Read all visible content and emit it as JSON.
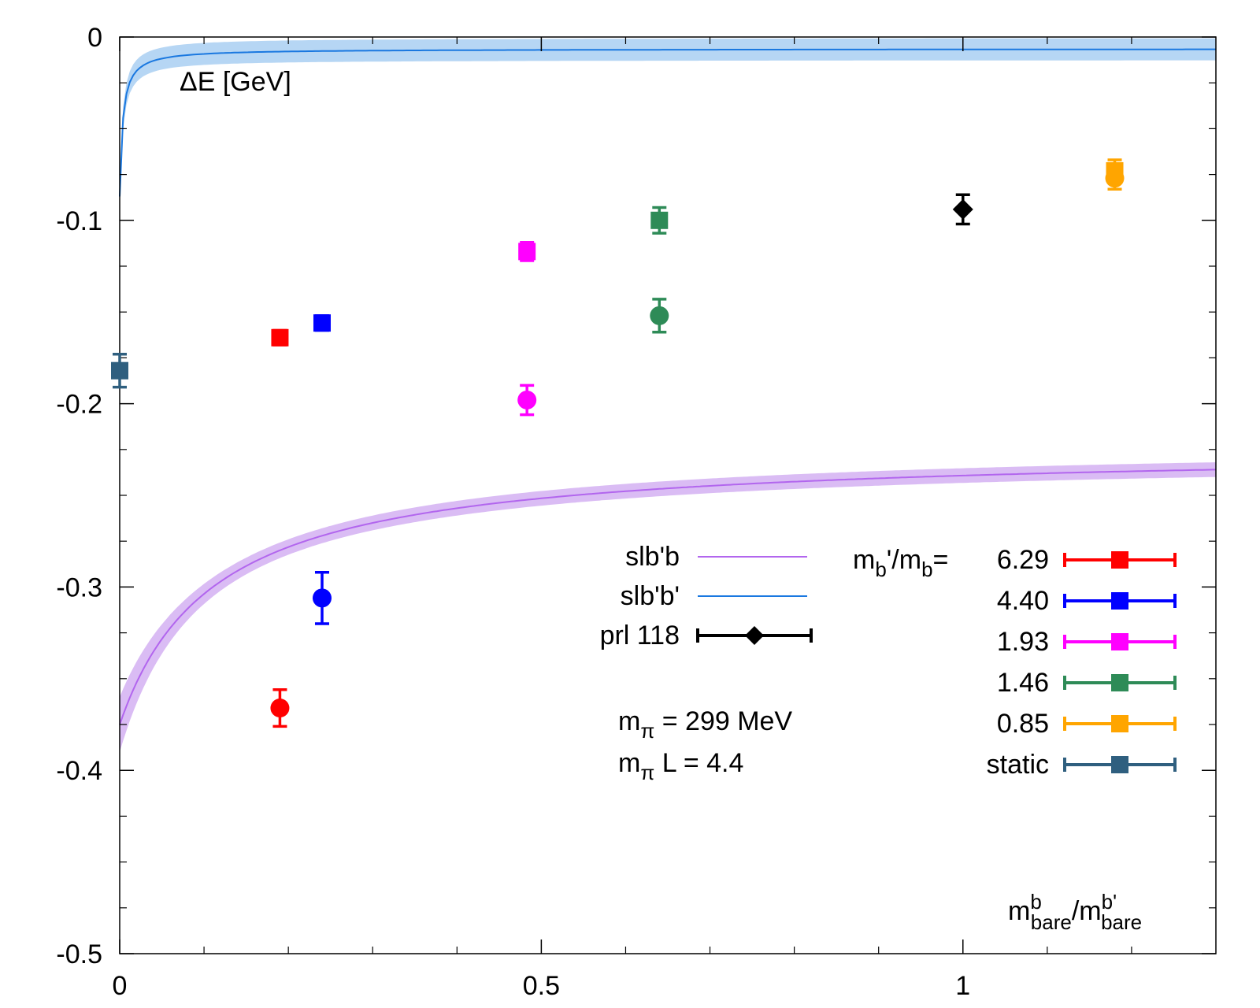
{
  "chart_data": {
    "type": "scatter",
    "title": "",
    "ylabel": "ΔE [GeV]",
    "xlabel_parts": {
      "m1": "m",
      "sup1": "b",
      "sub1": "bare",
      "slash": "/m",
      "sup2": "b'",
      "sub2": "bare"
    },
    "xlim": [
      0,
      1.3
    ],
    "ylim": [
      -0.5,
      0
    ],
    "xticks": [
      0,
      0.5,
      1
    ],
    "xtick_labels": [
      "0",
      "0.5",
      "1"
    ],
    "xminor": [
      0.1,
      0.2,
      0.3,
      0.4,
      0.6,
      0.7,
      0.8,
      0.9,
      1.1,
      1.2
    ],
    "yticks": [
      0,
      -0.1,
      -0.2,
      -0.3,
      -0.4,
      -0.5
    ],
    "ytick_labels": [
      "0",
      "-0.1",
      "-0.2",
      "-0.3",
      "-0.4",
      "-0.5"
    ],
    "yminor": [
      -0.025,
      -0.05,
      -0.075,
      -0.125,
      -0.15,
      -0.175,
      -0.225,
      -0.25,
      -0.275,
      -0.325,
      -0.35,
      -0.375,
      -0.425,
      -0.45,
      -0.475
    ],
    "fits": [
      {
        "name": "slb'b",
        "color": "#b266ee",
        "band": "#d4b0f2",
        "a": -0.224,
        "b": -0.151,
        "c": 0.112,
        "err0": 0.011,
        "err_k": 0.35
      },
      {
        "name": "slb'b'",
        "color": "#1a78e0",
        "band": "#a9cff2",
        "a": -0.0065,
        "b": -0.0805,
        "c": 0.0035,
        "err0": 0.006,
        "err_k": 0.0
      }
    ],
    "series": [
      {
        "label": "6.29",
        "color": "#ff0000",
        "points": [
          {
            "x": 0.19,
            "y": -0.164,
            "err": 0.004,
            "marker": "square",
            "set": "slb'b"
          },
          {
            "x": 0.19,
            "y": -0.366,
            "err": 0.01,
            "marker": "circle",
            "set": "slb'b'"
          }
        ]
      },
      {
        "label": "4.40",
        "color": "#0000ff",
        "points": [
          {
            "x": 0.24,
            "y": -0.156,
            "err": 0.004,
            "marker": "square",
            "set": "slb'b"
          },
          {
            "x": 0.24,
            "y": -0.306,
            "err": 0.014,
            "marker": "circle",
            "set": "slb'b'"
          }
        ]
      },
      {
        "label": "1.93",
        "color": "#ff00ff",
        "points": [
          {
            "x": 0.483,
            "y": -0.117,
            "err": 0.005,
            "marker": "square",
            "set": "slb'b"
          },
          {
            "x": 0.483,
            "y": -0.198,
            "err": 0.008,
            "marker": "circle",
            "set": "slb'b'"
          }
        ]
      },
      {
        "label": "1.46",
        "color": "#2e8b57",
        "points": [
          {
            "x": 0.64,
            "y": -0.1,
            "err": 0.007,
            "marker": "square",
            "set": "slb'b"
          },
          {
            "x": 0.64,
            "y": -0.152,
            "err": 0.009,
            "marker": "circle",
            "set": "slb'b'"
          }
        ]
      },
      {
        "label": "0.85",
        "color": "#ffa500",
        "points": [
          {
            "x": 1.18,
            "y": -0.073,
            "err": 0.006,
            "marker": "square",
            "set": "slb'b"
          },
          {
            "x": 1.18,
            "y": -0.077,
            "err": 0.006,
            "marker": "circle",
            "set": "slb'b'"
          }
        ]
      },
      {
        "label": "static",
        "color": "#2f5f7f",
        "points": [
          {
            "x": 0.0,
            "y": -0.182,
            "err": 0.009,
            "marker": "square",
            "set": "static"
          }
        ]
      }
    ],
    "reference": {
      "label": "prl 118",
      "color": "#000000",
      "x": 1.0,
      "y": -0.094,
      "err": 0.008,
      "marker": "diamond"
    },
    "legend_left": [
      {
        "label": "slb'b",
        "style": "line",
        "color": "#b266ee"
      },
      {
        "label": "slb'b'",
        "style": "line",
        "color": "#1a78e0"
      },
      {
        "label": "prl 118",
        "style": "errbar-diamond",
        "color": "#000000"
      }
    ],
    "legend_right_header": {
      "m": "m",
      "sub_b": "b",
      "prime": "'/m",
      "sub_b2": "b",
      "eq": "= "
    },
    "annotations": {
      "mpi_line": {
        "m": "m",
        "sub": "π",
        "text": " = 299 MeV"
      },
      "mpiL_line": {
        "m": "m",
        "sub": "π",
        "text": " L = 4.4"
      }
    }
  }
}
